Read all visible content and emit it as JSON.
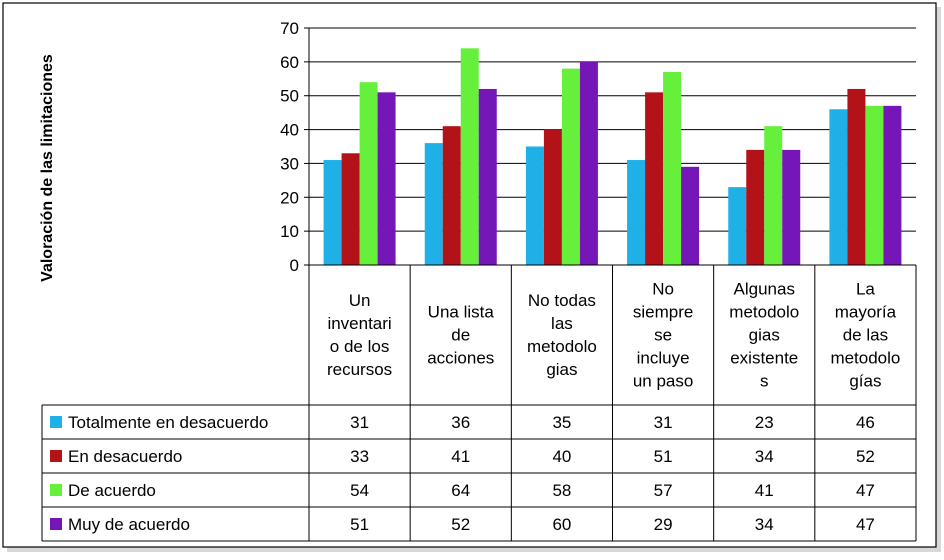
{
  "chart_data": {
    "type": "bar",
    "ylabel": "Valoración de las limitaciones",
    "ylim": [
      0,
      70
    ],
    "yticks": [
      0,
      10,
      20,
      30,
      40,
      50,
      60,
      70
    ],
    "grid": true,
    "legend": "table-left",
    "categories": [
      [
        "Un",
        "inventari",
        "o de los",
        "recursos"
      ],
      [
        "Una lista",
        "de",
        "acciones"
      ],
      [
        "No todas",
        "las",
        "metodolo",
        "gias"
      ],
      [
        "No",
        "siempre",
        "se",
        "incluye",
        "un paso"
      ],
      [
        "Algunas",
        "metodolo",
        "gias",
        "existente",
        "s"
      ],
      [
        "La",
        "mayoría",
        "de las",
        "metodolo",
        "gías"
      ]
    ],
    "series": [
      {
        "name": "Totalmente en desacuerdo",
        "color": "#1fb0e8",
        "values": [
          31,
          36,
          35,
          31,
          23,
          46
        ]
      },
      {
        "name": "En desacuerdo",
        "color": "#b31218",
        "values": [
          33,
          41,
          40,
          51,
          34,
          52
        ]
      },
      {
        "name": "De acuerdo",
        "color": "#66f03c",
        "values": [
          54,
          64,
          58,
          57,
          41,
          47
        ]
      },
      {
        "name": "Muy  de acuerdo",
        "color": "#7416b8",
        "values": [
          51,
          52,
          60,
          29,
          34,
          47
        ]
      }
    ]
  }
}
